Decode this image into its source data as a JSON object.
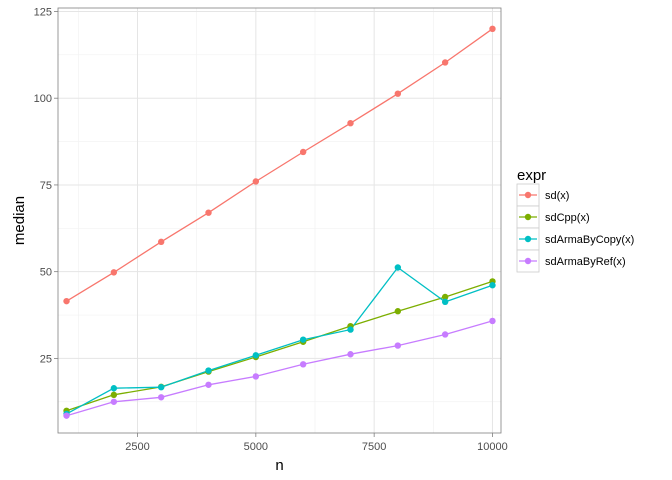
{
  "chart_data": {
    "type": "line",
    "xlabel": "n",
    "ylabel": "median",
    "xlim": [
      820,
      10180
    ],
    "ylim": [
      3.5,
      126
    ],
    "x_ticks": [
      2500,
      5000,
      7500,
      10000
    ],
    "x_tick_labels": [
      "2500",
      "5000",
      "7500",
      "10000"
    ],
    "y_ticks": [
      25,
      50,
      75,
      100,
      125
    ],
    "y_tick_labels": [
      "25",
      "50",
      "75",
      "100",
      "125"
    ],
    "grid": true,
    "legend": {
      "title": "expr",
      "position": "right"
    },
    "x": [
      1000,
      2000,
      3000,
      4000,
      5000,
      6000,
      7000,
      8000,
      9000,
      10000
    ],
    "series": [
      {
        "name": "sd(x)",
        "color": "#F8766D",
        "values": [
          41.5,
          49.8,
          58.6,
          67.0,
          76.0,
          84.5,
          92.8,
          101.3,
          110.3,
          120.0
        ]
      },
      {
        "name": "sdCpp(x)",
        "color": "#7CAE00",
        "values": [
          9.9,
          14.5,
          16.8,
          21.2,
          25.4,
          29.8,
          34.3,
          38.6,
          42.7,
          47.2
        ]
      },
      {
        "name": "sdArmaByCopy(x)",
        "color": "#00BFC4",
        "values": [
          9.0,
          16.4,
          16.7,
          21.5,
          25.9,
          30.4,
          33.3,
          51.2,
          41.3,
          46.1
        ]
      },
      {
        "name": "sdArmaByRef(x)",
        "color": "#C77CFF",
        "values": [
          8.5,
          12.5,
          13.8,
          17.4,
          19.8,
          23.3,
          26.2,
          28.7,
          31.9,
          35.8
        ]
      }
    ]
  }
}
